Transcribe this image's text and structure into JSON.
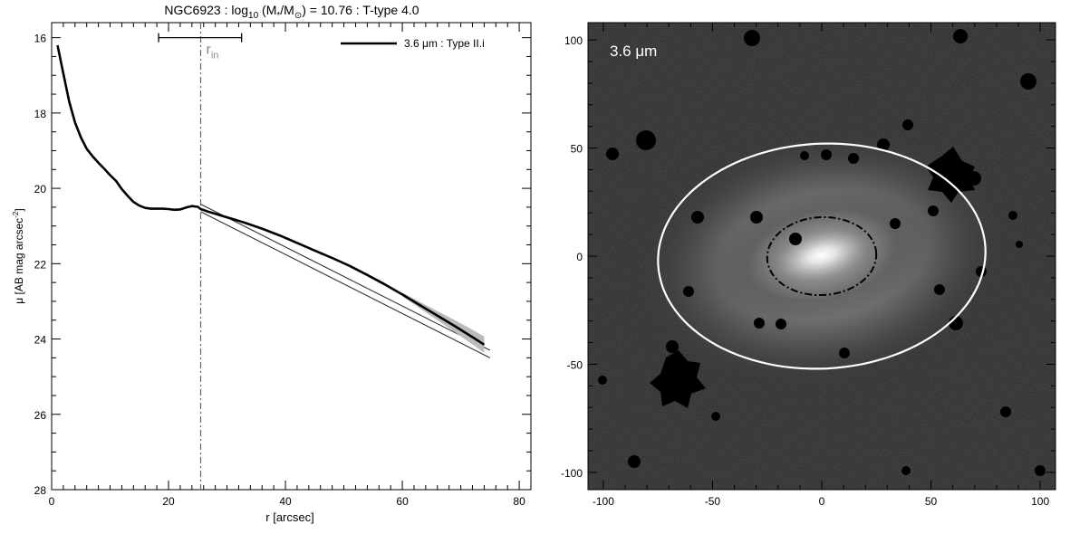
{
  "chart_data": [
    {
      "type": "line",
      "title_parts": {
        "a": "NGC6923 : log",
        "a_sub": "10",
        "b": " (M",
        "b_sub": "*",
        "c": "/M",
        "c_sub": "⊙",
        "d": ") = 10.76 : T-type 4.0"
      },
      "xlabel": "r [arcsec]",
      "ylabel_main": "μ [AB mag arcsec",
      "ylabel_sup": "-2",
      "ylabel_end": "]",
      "xlim": [
        0,
        82
      ],
      "ylim": [
        28,
        15.6
      ],
      "y_inverted": true,
      "xticks": [
        0,
        20,
        40,
        60,
        80
      ],
      "yticks": [
        16,
        18,
        20,
        22,
        24,
        26,
        28
      ],
      "grid": false,
      "legend": {
        "label": "3.6 μm : Type II.i",
        "placement": "top-right"
      },
      "vline": {
        "x": 25.5,
        "style": "dash-dot"
      },
      "r_in": {
        "label": "r",
        "sub": "in",
        "x": 25.5,
        "range": [
          18.3,
          32.5
        ],
        "y": 16.0
      },
      "series": [
        {
          "name": "3.6 μm : Type II.i",
          "x": [
            1.0,
            2.0,
            3.0,
            4.0,
            5.0,
            6.0,
            7.0,
            8.0,
            9.0,
            10.0,
            11.0,
            12.0,
            13.0,
            14.0,
            15.0,
            16.0,
            17.0,
            18.0,
            19.0,
            20.0,
            21.0,
            22.0,
            23.0,
            24.0,
            25.0,
            25.5,
            27.0,
            30.0,
            33.0,
            36.0,
            39.0,
            42.0,
            45.0,
            48.0,
            51.0,
            54.0,
            57.0,
            60.0,
            63.0,
            66.0,
            69.0,
            72.0,
            74.0
          ],
          "values": [
            16.2,
            16.95,
            17.7,
            18.25,
            18.65,
            18.95,
            19.15,
            19.32,
            19.48,
            19.65,
            19.8,
            20.02,
            20.2,
            20.36,
            20.46,
            20.52,
            20.54,
            20.54,
            20.54,
            20.55,
            20.57,
            20.56,
            20.51,
            20.47,
            20.49,
            20.55,
            20.63,
            20.77,
            20.91,
            21.07,
            21.25,
            21.45,
            21.65,
            21.85,
            22.06,
            22.3,
            22.55,
            22.82,
            23.1,
            23.38,
            23.66,
            23.95,
            24.15
          ]
        }
      ],
      "fits": [
        {
          "x": [
            25.5,
            75.0
          ],
          "values": [
            20.42,
            24.3
          ]
        },
        {
          "x": [
            25.5,
            75.0
          ],
          "values": [
            20.62,
            24.5
          ]
        }
      ]
    },
    {
      "type": "image",
      "caption": "3.6 μm",
      "xlim": [
        -107,
        107
      ],
      "ylim": [
        -108,
        108
      ],
      "xticks": [
        -100,
        -50,
        0,
        50,
        100
      ],
      "yticks": [
        -100,
        -50,
        0,
        50,
        100
      ],
      "ellipses": [
        {
          "style": "solid",
          "color": "#ffffff",
          "cx": 0,
          "cy": 0,
          "a": 75,
          "b": 52,
          "angle_deg": 3
        },
        {
          "style": "dash-dot",
          "color": "#000000",
          "cx": 0,
          "cy": 0,
          "a": 25,
          "b": 18,
          "angle_deg": 3
        }
      ]
    }
  ]
}
